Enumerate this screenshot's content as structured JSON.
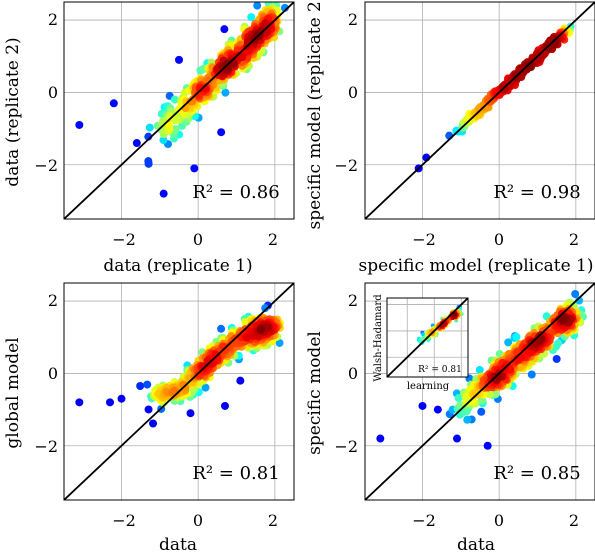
{
  "chart_data": [
    {
      "type": "scatter",
      "xlabel": "data (replicate 1)",
      "ylabel": "data (replicate 2)",
      "annotation": "R² = 0.86",
      "xlim": [
        -3.5,
        2.5
      ],
      "ylim": [
        -3.5,
        2.5
      ],
      "xticks": [
        "−2",
        "0",
        "2"
      ],
      "yticks": [
        "−2",
        "0",
        "2"
      ],
      "grid": true,
      "diagonal": true,
      "trend": {
        "slope": 1.0,
        "spread": 0.28,
        "x_range": [
          -2.2,
          2.0
        ],
        "n": 420
      },
      "outliers": [
        [
          -3.1,
          -0.9
        ],
        [
          -2.2,
          -0.3
        ],
        [
          -0.9,
          -2.8
        ],
        [
          -0.1,
          -2.1
        ],
        [
          -1.3,
          -1.9
        ],
        [
          -1.6,
          -1.4
        ],
        [
          -0.5,
          0.9
        ],
        [
          0.6,
          -1.1
        ]
      ]
    },
    {
      "type": "scatter",
      "xlabel": "specific model (replicate 1)",
      "ylabel": "specific model (replicate 2)",
      "annotation": "R² = 0.98",
      "xlim": [
        -3.5,
        2.5
      ],
      "ylim": [
        -3.5,
        2.5
      ],
      "xticks": [
        "−2",
        "0",
        "2"
      ],
      "yticks": [
        "−2",
        "0",
        "2"
      ],
      "grid": true,
      "diagonal": true,
      "trend": {
        "slope": 0.98,
        "spread": 0.07,
        "x_range": [
          -2.0,
          1.6
        ],
        "n": 420
      },
      "outliers": [
        [
          -2.1,
          -2.1
        ],
        [
          -1.9,
          -1.8
        ]
      ]
    },
    {
      "type": "scatter",
      "xlabel": "data",
      "ylabel": "global model",
      "annotation": "R² = 0.81",
      "xlim": [
        -3.5,
        2.5
      ],
      "ylim": [
        -3.5,
        2.5
      ],
      "xticks": [
        "−2",
        "0",
        "2"
      ],
      "yticks": [
        "−2",
        "0",
        "2"
      ],
      "grid": true,
      "diagonal": true,
      "trend": {
        "shape": "sigmoid",
        "spread": 0.2,
        "x_range": [
          -2.3,
          2.0
        ],
        "n": 420
      },
      "outliers": [
        [
          -3.1,
          -0.8
        ],
        [
          -2.3,
          -0.8
        ],
        [
          -2.0,
          -0.7
        ],
        [
          0.7,
          -0.9
        ],
        [
          1.1,
          -0.2
        ],
        [
          -0.2,
          -1.1
        ]
      ]
    },
    {
      "type": "scatter",
      "xlabel": "data",
      "ylabel": "specific model",
      "annotation": "R² = 0.85",
      "xlim": [
        -3.5,
        2.5
      ],
      "ylim": [
        -3.5,
        2.5
      ],
      "xticks": [
        "−2",
        "0",
        "2"
      ],
      "yticks": [
        "−2",
        "0",
        "2"
      ],
      "grid": true,
      "diagonal": true,
      "trend": {
        "slope": 0.85,
        "spread": 0.25,
        "x_range": [
          -2.2,
          2.0
        ],
        "n": 420
      },
      "outliers": [
        [
          -3.1,
          -1.8
        ],
        [
          -1.6,
          -1.0
        ],
        [
          -1.1,
          -1.8
        ],
        [
          -0.3,
          -2.0
        ],
        [
          -2.0,
          -0.9
        ],
        [
          1.5,
          0.4
        ]
      ],
      "inset": {
        "type": "scatter",
        "xlabel": "learning",
        "ylabel": "Walsh-Hadamard",
        "annotation": "R² = 0.81",
        "xlim": [
          -3.5,
          2.5
        ],
        "ylim": [
          -3.5,
          2.5
        ],
        "grid": true,
        "diagonal": true,
        "trend": {
          "slope": 0.8,
          "spread": 0.2,
          "x_range": [
            -2.0,
            1.8
          ],
          "n": 160
        }
      }
    }
  ]
}
